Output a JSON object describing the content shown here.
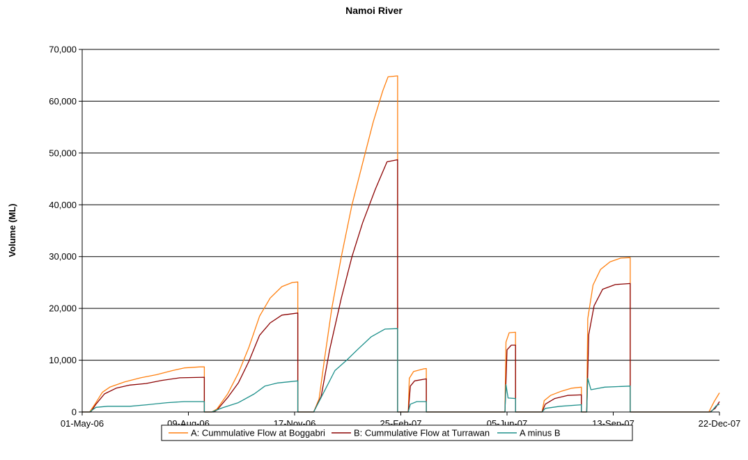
{
  "chart_data": {
    "type": "line",
    "title": "Namoi River",
    "xlabel": "",
    "ylabel": "Volume (ML)",
    "ylim": [
      0,
      70000
    ],
    "yticks": [
      0,
      10000,
      20000,
      30000,
      40000,
      50000,
      60000,
      70000
    ],
    "ytick_labels": [
      "0",
      "10,000",
      "20,000",
      "30,000",
      "40,000",
      "50,000",
      "60,000",
      "70,000"
    ],
    "xlim": [
      "2006-05-01",
      "2007-12-22"
    ],
    "xticks": [
      "2006-05-01",
      "2006-08-09",
      "2006-11-17",
      "2007-02-25",
      "2007-06-05",
      "2007-09-13",
      "2007-12-22"
    ],
    "xtick_labels": [
      "01-May-06",
      "09-Aug-06",
      "17-Nov-06",
      "25-Feb-07",
      "05-Jun-07",
      "13-Sep-07",
      "22-Dec-07"
    ],
    "grid": "horizontal",
    "legend_position": "bottom",
    "series": [
      {
        "name": "A: Cummulative Flow at Boggabri",
        "color": "#ff7f0e",
        "points": [
          [
            "2006-05-01",
            0
          ],
          [
            "2006-05-08",
            0
          ],
          [
            "2006-05-13",
            1500
          ],
          [
            "2006-05-20",
            3800
          ],
          [
            "2006-05-27",
            4800
          ],
          [
            "2006-06-10",
            5800
          ],
          [
            "2006-06-25",
            6600
          ],
          [
            "2006-07-10",
            7200
          ],
          [
            "2006-07-25",
            8000
          ],
          [
            "2006-08-05",
            8500
          ],
          [
            "2006-08-20",
            8700
          ],
          [
            "2006-08-24",
            8700
          ],
          [
            "2006-08-24",
            0
          ],
          [
            "2006-08-31",
            0
          ],
          [
            "2006-09-05",
            600
          ],
          [
            "2006-09-15",
            3500
          ],
          [
            "2006-09-25",
            7500
          ],
          [
            "2006-10-05",
            12500
          ],
          [
            "2006-10-15",
            18500
          ],
          [
            "2006-10-25",
            22000
          ],
          [
            "2006-11-05",
            24200
          ],
          [
            "2006-11-15",
            25000
          ],
          [
            "2006-11-20",
            25100
          ],
          [
            "2006-11-20",
            0
          ],
          [
            "2006-12-05",
            0
          ],
          [
            "2006-12-10",
            2500
          ],
          [
            "2006-12-15",
            10000
          ],
          [
            "2006-12-22",
            20000
          ],
          [
            "2006-12-31",
            30000
          ],
          [
            "2007-01-10",
            40000
          ],
          [
            "2007-01-20",
            48000
          ],
          [
            "2007-01-30",
            56000
          ],
          [
            "2007-02-08",
            62000
          ],
          [
            "2007-02-13",
            64700
          ],
          [
            "2007-02-22",
            64900
          ],
          [
            "2007-02-22",
            0
          ],
          [
            "2007-03-04",
            0
          ],
          [
            "2007-03-05",
            6500
          ],
          [
            "2007-03-09",
            7800
          ],
          [
            "2007-03-18",
            8300
          ],
          [
            "2007-03-21",
            8400
          ],
          [
            "2007-03-21",
            0
          ],
          [
            "2007-06-03",
            0
          ],
          [
            "2007-06-04",
            13500
          ],
          [
            "2007-06-07",
            15300
          ],
          [
            "2007-06-13",
            15400
          ],
          [
            "2007-06-13",
            0
          ],
          [
            "2007-07-08",
            0
          ],
          [
            "2007-07-10",
            2200
          ],
          [
            "2007-07-16",
            3200
          ],
          [
            "2007-07-26",
            4000
          ],
          [
            "2007-08-05",
            4600
          ],
          [
            "2007-08-14",
            4800
          ],
          [
            "2007-08-14",
            0
          ],
          [
            "2007-08-19",
            0
          ],
          [
            "2007-08-20",
            18000
          ],
          [
            "2007-08-25",
            24500
          ],
          [
            "2007-09-01",
            27500
          ],
          [
            "2007-09-10",
            29000
          ],
          [
            "2007-09-20",
            29700
          ],
          [
            "2007-09-29",
            29800
          ],
          [
            "2007-09-29",
            0
          ],
          [
            "2007-12-12",
            0
          ],
          [
            "2007-12-17",
            2000
          ],
          [
            "2007-12-22",
            3700
          ]
        ]
      },
      {
        "name": "B: Cummulative Flow at Turrawan",
        "color": "#8b0000",
        "points": [
          [
            "2006-05-01",
            0
          ],
          [
            "2006-05-09",
            0
          ],
          [
            "2006-05-14",
            1500
          ],
          [
            "2006-05-22",
            3500
          ],
          [
            "2006-06-02",
            4600
          ],
          [
            "2006-06-15",
            5200
          ],
          [
            "2006-06-30",
            5500
          ],
          [
            "2006-07-15",
            6100
          ],
          [
            "2006-08-01",
            6600
          ],
          [
            "2006-08-24",
            6700
          ],
          [
            "2006-08-24",
            0
          ],
          [
            "2006-09-02",
            0
          ],
          [
            "2006-09-05",
            400
          ],
          [
            "2006-09-15",
            2800
          ],
          [
            "2006-09-25",
            5600
          ],
          [
            "2006-10-05",
            9800
          ],
          [
            "2006-10-15",
            14800
          ],
          [
            "2006-10-25",
            17200
          ],
          [
            "2006-11-05",
            18700
          ],
          [
            "2006-11-20",
            19100
          ],
          [
            "2006-11-20",
            0
          ],
          [
            "2006-12-05",
            0
          ],
          [
            "2006-12-12",
            3000
          ],
          [
            "2006-12-20",
            12000
          ],
          [
            "2006-12-31",
            22000
          ],
          [
            "2007-01-10",
            30000
          ],
          [
            "2007-01-20",
            36500
          ],
          [
            "2007-02-01",
            43000
          ],
          [
            "2007-02-12",
            48300
          ],
          [
            "2007-02-22",
            48700
          ],
          [
            "2007-02-22",
            0
          ],
          [
            "2007-03-04",
            0
          ],
          [
            "2007-03-06",
            5000
          ],
          [
            "2007-03-10",
            6000
          ],
          [
            "2007-03-21",
            6400
          ],
          [
            "2007-03-21",
            0
          ],
          [
            "2007-06-03",
            0
          ],
          [
            "2007-06-05",
            12000
          ],
          [
            "2007-06-09",
            12900
          ],
          [
            "2007-06-13",
            12900
          ],
          [
            "2007-06-13",
            0
          ],
          [
            "2007-07-08",
            0
          ],
          [
            "2007-07-11",
            1500
          ],
          [
            "2007-07-20",
            2600
          ],
          [
            "2007-08-01",
            3200
          ],
          [
            "2007-08-14",
            3300
          ],
          [
            "2007-08-14",
            0
          ],
          [
            "2007-08-19",
            0
          ],
          [
            "2007-08-21",
            15000
          ],
          [
            "2007-08-26",
            20500
          ],
          [
            "2007-09-03",
            23700
          ],
          [
            "2007-09-15",
            24600
          ],
          [
            "2007-09-29",
            24800
          ],
          [
            "2007-09-29",
            0
          ],
          [
            "2007-12-13",
            0
          ],
          [
            "2007-12-18",
            700
          ],
          [
            "2007-12-22",
            2000
          ]
        ]
      },
      {
        "name": "A minus B",
        "color": "#1b8f8a",
        "points": [
          [
            "2006-05-01",
            0
          ],
          [
            "2006-05-08",
            0
          ],
          [
            "2006-05-14",
            900
          ],
          [
            "2006-05-25",
            1100
          ],
          [
            "2006-06-15",
            1100
          ],
          [
            "2006-07-01",
            1400
          ],
          [
            "2006-07-20",
            1800
          ],
          [
            "2006-08-05",
            2000
          ],
          [
            "2006-08-24",
            2000
          ],
          [
            "2006-08-24",
            0
          ],
          [
            "2006-08-31",
            0
          ],
          [
            "2006-09-10",
            800
          ],
          [
            "2006-09-25",
            1800
          ],
          [
            "2006-10-10",
            3500
          ],
          [
            "2006-10-20",
            5000
          ],
          [
            "2006-11-01",
            5600
          ],
          [
            "2006-11-20",
            6000
          ],
          [
            "2006-11-20",
            0
          ],
          [
            "2006-12-05",
            0
          ],
          [
            "2006-12-15",
            4000
          ],
          [
            "2006-12-25",
            8000
          ],
          [
            "2007-01-05",
            10000
          ],
          [
            "2007-01-15",
            12000
          ],
          [
            "2007-01-28",
            14500
          ],
          [
            "2007-02-10",
            16000
          ],
          [
            "2007-02-22",
            16100
          ],
          [
            "2007-02-22",
            0
          ],
          [
            "2007-03-04",
            0
          ],
          [
            "2007-03-06",
            1500
          ],
          [
            "2007-03-12",
            2000
          ],
          [
            "2007-03-21",
            2000
          ],
          [
            "2007-03-21",
            0
          ],
          [
            "2007-06-03",
            0
          ],
          [
            "2007-06-04",
            5300
          ],
          [
            "2007-06-06",
            2700
          ],
          [
            "2007-06-13",
            2600
          ],
          [
            "2007-06-13",
            0
          ],
          [
            "2007-07-08",
            0
          ],
          [
            "2007-07-11",
            700
          ],
          [
            "2007-07-25",
            1100
          ],
          [
            "2007-08-14",
            1400
          ],
          [
            "2007-08-14",
            0
          ],
          [
            "2007-08-19",
            0
          ],
          [
            "2007-08-20",
            6500
          ],
          [
            "2007-08-23",
            4300
          ],
          [
            "2007-09-05",
            4800
          ],
          [
            "2007-09-29",
            5000
          ],
          [
            "2007-09-29",
            0
          ],
          [
            "2007-12-14",
            0
          ],
          [
            "2007-12-19",
            1200
          ],
          [
            "2007-12-22",
            1500
          ]
        ]
      }
    ]
  }
}
